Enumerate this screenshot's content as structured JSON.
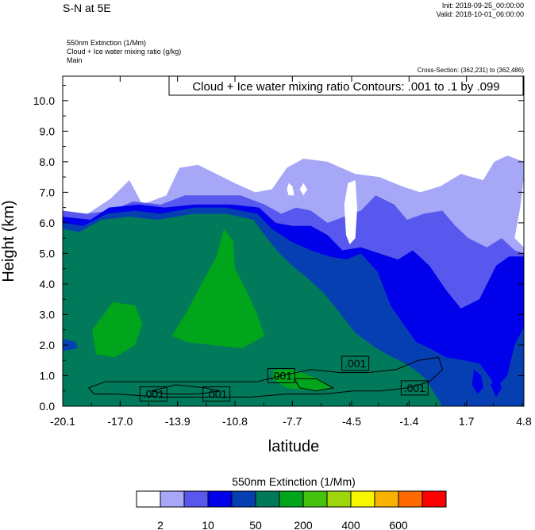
{
  "header": {
    "title": "S-N at 5E",
    "init": "Init: 2018-09-25_00:00:00",
    "valid": "Valid: 2018-10-01_06:00:00",
    "field_lines": [
      "550nm Extinction   (1/Mm)",
      "Cloud + Ice water mixing ratio   (g/kg)",
      "Main"
    ],
    "cross_section": "Cross-Section: (362,231) to (362,486)"
  },
  "chart_data": {
    "type": "heatmap",
    "xlabel": "latitude",
    "ylabel": "Height (km)",
    "x_ticks": [
      "-20.1",
      "-17.0",
      "-13.9",
      "-10.8",
      "-7.7",
      "-4.5",
      "-1.4",
      "1.7",
      "4.8"
    ],
    "x_tick_values": [
      -20.1,
      -17.0,
      -13.9,
      -10.8,
      -7.7,
      -4.5,
      -1.4,
      1.7,
      4.8
    ],
    "y_ticks": [
      "0.0",
      "1.0",
      "2.0",
      "3.0",
      "4.0",
      "5.0",
      "6.0",
      "7.0",
      "8.0",
      "9.0",
      "10.0"
    ],
    "xlim": [
      -20.1,
      4.8
    ],
    "ylim": [
      0,
      10.8
    ],
    "contour_title": "Cloud + Ice water mixing ratio Contours: .001 to .1 by .099",
    "contour_labels": [
      ".001",
      ".001",
      ".001",
      ".001",
      ".001"
    ],
    "colorbar_title": "550nm Extinction  (1/Mm)",
    "colorbar_labels": [
      "2",
      "10",
      "50",
      "200",
      "400",
      "600"
    ],
    "colorbar_colors": [
      "#ffffff",
      "#a7a7f7",
      "#5858ef",
      "#0000ea",
      "#063fb2",
      "#007a5a",
      "#00a51c",
      "#44c20d",
      "#9fd60b",
      "#f7f700",
      "#f7b300",
      "#ff6a00",
      "#ff0000"
    ],
    "layers": [
      {
        "level": "2-10",
        "color": "#a7a7f7",
        "top": [
          [
            -20.1,
            6.4
          ],
          [
            -19.0,
            6.2
          ],
          [
            -17.5,
            6.8
          ],
          [
            -16.5,
            7.4
          ],
          [
            -15.8,
            6.6
          ],
          [
            -14.5,
            6.9
          ],
          [
            -13.8,
            7.8
          ],
          [
            -12.8,
            7.9
          ],
          [
            -11.8,
            7.6
          ],
          [
            -10.8,
            7.3
          ],
          [
            -9.7,
            7.0
          ],
          [
            -8.8,
            7.1
          ],
          [
            -8.0,
            7.8
          ],
          [
            -7.1,
            8.1
          ],
          [
            -5.8,
            8.0
          ],
          [
            -4.3,
            7.6
          ],
          [
            -3.0,
            7.5
          ],
          [
            -1.8,
            7.2
          ],
          [
            -0.8,
            7.0
          ],
          [
            0.3,
            7.2
          ],
          [
            1.4,
            7.6
          ],
          [
            2.6,
            7.4
          ],
          [
            3.2,
            8.0
          ],
          [
            3.9,
            8.2
          ],
          [
            4.8,
            8.0
          ]
        ],
        "bottom": [
          [
            4.8,
            7.5
          ],
          [
            4.6,
            6.5
          ],
          [
            4.3,
            5.5
          ],
          [
            4.8,
            5.2
          ]
        ]
      },
      {
        "level": "10-50",
        "color": "#5858ef",
        "top": [
          [
            -20.1,
            6.4
          ],
          [
            -18.8,
            6.3
          ],
          [
            -17.5,
            6.4
          ],
          [
            -16.3,
            6.7
          ],
          [
            -14.8,
            6.6
          ],
          [
            -13.5,
            6.9
          ],
          [
            -12.0,
            6.9
          ],
          [
            -10.5,
            6.9
          ],
          [
            -9.2,
            6.6
          ],
          [
            -8.3,
            6.3
          ],
          [
            -7.5,
            6.5
          ],
          [
            -6.7,
            6.4
          ],
          [
            -5.8,
            6.0
          ],
          [
            -4.9,
            6.2
          ],
          [
            -4.0,
            6.4
          ],
          [
            -3.2,
            6.9
          ],
          [
            -2.2,
            6.6
          ],
          [
            -1.5,
            6.1
          ],
          [
            -0.6,
            6.3
          ],
          [
            0.4,
            6.4
          ],
          [
            1.1,
            5.9
          ],
          [
            1.8,
            5.5
          ],
          [
            2.8,
            5.2
          ],
          [
            3.6,
            5.5
          ],
          [
            4.3,
            5.1
          ],
          [
            4.8,
            5.0
          ]
        ]
      },
      {
        "level": "50-200",
        "color": "#0000ea",
        "top": [
          [
            -20.1,
            6.2
          ],
          [
            -18.6,
            6.1
          ],
          [
            -17.6,
            6.5
          ],
          [
            -16.0,
            6.6
          ],
          [
            -14.6,
            6.5
          ],
          [
            -13.0,
            6.6
          ],
          [
            -11.0,
            6.6
          ],
          [
            -9.5,
            6.5
          ],
          [
            -8.6,
            6.0
          ],
          [
            -7.7,
            5.9
          ],
          [
            -6.7,
            5.9
          ],
          [
            -5.8,
            5.6
          ],
          [
            -5.0,
            5.1
          ],
          [
            -4.0,
            5.2
          ],
          [
            -3.0,
            5.0
          ],
          [
            -2.0,
            4.8
          ],
          [
            -1.2,
            5.1
          ],
          [
            -0.3,
            4.6
          ],
          [
            0.6,
            3.8
          ],
          [
            1.4,
            3.2
          ],
          [
            2.4,
            3.5
          ],
          [
            3.3,
            4.6
          ],
          [
            4.0,
            4.9
          ],
          [
            4.8,
            4.9
          ]
        ]
      },
      {
        "level": "200-400",
        "color": "#063fb2",
        "top": [
          [
            -20.1,
            6.0
          ],
          [
            -19.0,
            5.9
          ],
          [
            -17.7,
            6.3
          ],
          [
            -16.2,
            6.4
          ],
          [
            -14.8,
            6.3
          ],
          [
            -13.0,
            6.5
          ],
          [
            -11.3,
            6.5
          ],
          [
            -9.6,
            6.3
          ],
          [
            -8.8,
            5.8
          ],
          [
            -7.8,
            5.4
          ],
          [
            -6.7,
            5.1
          ],
          [
            -5.7,
            4.9
          ],
          [
            -4.8,
            4.8
          ],
          [
            -4.0,
            5.0
          ],
          [
            -3.1,
            4.4
          ],
          [
            -2.4,
            3.3
          ],
          [
            -1.6,
            2.6
          ],
          [
            -1.0,
            2.1
          ],
          [
            -0.3,
            1.9
          ],
          [
            0.6,
            1.6
          ],
          [
            1.6,
            1.5
          ],
          [
            2.4,
            1.4
          ],
          [
            2.9,
            1.0
          ],
          [
            3.3,
            0.6
          ],
          [
            3.9,
            1.0
          ],
          [
            4.3,
            2.0
          ],
          [
            4.8,
            2.6
          ]
        ]
      },
      {
        "level": "400-600",
        "color": "#007a5a",
        "top": [
          [
            -20.1,
            5.8
          ],
          [
            -19.2,
            5.7
          ],
          [
            -18.0,
            6.1
          ],
          [
            -16.5,
            6.2
          ],
          [
            -15.0,
            6.1
          ],
          [
            -13.0,
            6.3
          ],
          [
            -11.3,
            6.3
          ],
          [
            -9.8,
            6.1
          ],
          [
            -9.2,
            5.6
          ],
          [
            -8.4,
            5.0
          ],
          [
            -7.7,
            4.6
          ],
          [
            -6.9,
            4.2
          ],
          [
            -6.0,
            3.7
          ],
          [
            -5.2,
            3.1
          ],
          [
            -4.3,
            2.4
          ],
          [
            -3.4,
            2.0
          ],
          [
            -2.6,
            1.7
          ],
          [
            -1.9,
            1.5
          ],
          [
            -1.1,
            1.2
          ],
          [
            -0.5,
            0.9
          ],
          [
            0.0,
            0.4
          ],
          [
            0.4,
            0.0
          ]
        ]
      }
    ],
    "patches": [
      {
        "level": "200-400",
        "points": [
          [
            -20.1,
            2.2
          ],
          [
            -19.4,
            2.1
          ],
          [
            -19.3,
            1.9
          ],
          [
            -20.1,
            1.8
          ]
        ]
      },
      {
        "level": "600+",
        "points": [
          [
            -18.5,
            2.5
          ],
          [
            -17.4,
            3.4
          ],
          [
            -16.2,
            3.3
          ],
          [
            -15.8,
            2.7
          ],
          [
            -16.2,
            2.0
          ],
          [
            -17.3,
            1.6
          ],
          [
            -18.3,
            1.7
          ]
        ]
      },
      {
        "level": "600+",
        "points": [
          [
            -14.2,
            2.3
          ],
          [
            -13.4,
            3.1
          ],
          [
            -12.6,
            4.0
          ],
          [
            -11.8,
            4.9
          ],
          [
            -11.4,
            5.8
          ],
          [
            -10.9,
            5.4
          ],
          [
            -10.8,
            4.5
          ],
          [
            -10.2,
            3.8
          ],
          [
            -9.6,
            3.0
          ],
          [
            -9.2,
            2.3
          ],
          [
            -10.4,
            1.9
          ],
          [
            -12.0,
            2.0
          ],
          [
            -13.4,
            2.1
          ]
        ]
      },
      {
        "level": "600+",
        "points": [
          [
            -8.7,
            1.2
          ],
          [
            -7.7,
            1.2
          ],
          [
            -6.3,
            0.9
          ],
          [
            -5.6,
            0.6
          ],
          [
            -6.5,
            0.5
          ],
          [
            -8.0,
            0.6
          ],
          [
            -8.8,
            0.9
          ]
        ]
      },
      {
        "level": "50-200",
        "points": [
          [
            2.1,
            1.2
          ],
          [
            2.5,
            1.0
          ],
          [
            2.6,
            0.6
          ],
          [
            2.3,
            0.4
          ],
          [
            2.0,
            0.7
          ]
        ]
      },
      {
        "level": "50-200",
        "points": [
          [
            3.0,
            0.7
          ],
          [
            3.4,
            1.0
          ],
          [
            3.6,
            0.6
          ],
          [
            3.3,
            0.3
          ]
        ]
      }
    ],
    "holes": [
      {
        "points": [
          [
            -8.0,
            7.1
          ],
          [
            -7.9,
            7.3
          ],
          [
            -7.7,
            7.2
          ],
          [
            -7.6,
            6.9
          ],
          [
            -7.9,
            6.9
          ]
        ]
      },
      {
        "points": [
          [
            -4.8,
            5.6
          ],
          [
            -4.9,
            6.6
          ],
          [
            -4.7,
            7.3
          ],
          [
            -4.3,
            7.4
          ],
          [
            -4.2,
            6.5
          ],
          [
            -4.3,
            5.5
          ],
          [
            -4.6,
            5.3
          ]
        ]
      },
      {
        "points": [
          [
            -7.3,
            7.1
          ],
          [
            -7.1,
            7.3
          ],
          [
            -6.9,
            7.1
          ],
          [
            -7.1,
            6.9
          ]
        ]
      }
    ],
    "contours": [
      {
        "points": [
          [
            -18.7,
            0.6
          ],
          [
            -17.8,
            0.8
          ],
          [
            -16.6,
            0.8
          ],
          [
            -15.1,
            0.8
          ],
          [
            -13.1,
            0.8
          ],
          [
            -11.0,
            0.8
          ],
          [
            -9.6,
            0.8
          ],
          [
            -8.3,
            1.0
          ],
          [
            -6.7,
            1.2
          ],
          [
            -5.1,
            1.1
          ],
          [
            -3.6,
            1.1
          ],
          [
            -2.1,
            1.2
          ],
          [
            -0.9,
            1.5
          ],
          [
            0.2,
            1.6
          ],
          [
            0.4,
            1.2
          ],
          [
            -0.3,
            0.8
          ],
          [
            -1.5,
            0.6
          ],
          [
            -2.9,
            0.5
          ],
          [
            -4.4,
            0.5
          ],
          [
            -6.0,
            0.4
          ],
          [
            -8.0,
            0.4
          ],
          [
            -10.0,
            0.3
          ],
          [
            -12.3,
            0.3
          ],
          [
            -14.7,
            0.3
          ],
          [
            -17.2,
            0.4
          ],
          [
            -18.4,
            0.4
          ]
        ]
      },
      {
        "points": [
          [
            -15.3,
            0.5
          ],
          [
            -14.0,
            0.7
          ],
          [
            -12.4,
            0.6
          ],
          [
            -11.6,
            0.5
          ],
          [
            -12.8,
            0.4
          ],
          [
            -14.5,
            0.4
          ]
        ]
      },
      {
        "points": [
          [
            -7.6,
            0.9
          ],
          [
            -6.4,
            0.9
          ],
          [
            -5.5,
            0.6
          ],
          [
            -6.4,
            0.5
          ],
          [
            -7.3,
            0.6
          ]
        ]
      }
    ],
    "contour_label_positions": [
      [
        -15.2,
        0.4
      ],
      [
        -11.8,
        0.4
      ],
      [
        -8.3,
        1.0
      ],
      [
        -4.3,
        1.4
      ],
      [
        -1.1,
        0.6
      ]
    ],
    "legend_box": {
      "title_position": "top-right"
    }
  }
}
